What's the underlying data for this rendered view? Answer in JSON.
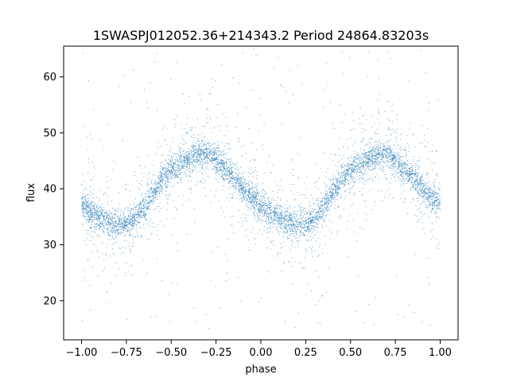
{
  "chart_data": {
    "type": "scatter",
    "title": "1SWASPJ012052.36+214343.2 Period 24864.83203s",
    "xlabel": "phase",
    "ylabel": "flux",
    "xlim": [
      -1.1,
      1.1
    ],
    "ylim": [
      13,
      65.5
    ],
    "xticks": [
      -1.0,
      -0.75,
      -0.5,
      -0.25,
      0.0,
      0.25,
      0.5,
      0.75,
      1.0
    ],
    "xtick_labels": [
      "−1.00",
      "−0.75",
      "−0.50",
      "−0.25",
      "0.00",
      "0.25",
      "0.50",
      "0.75",
      "1.00"
    ],
    "yticks": [
      20,
      30,
      40,
      50,
      60
    ],
    "ytick_labels": [
      "20",
      "30",
      "40",
      "50",
      "60"
    ],
    "grid": false,
    "series": [
      {
        "marker_color": "#1f77b4",
        "x_range": [
          -1.0,
          1.0
        ],
        "points": [
          [
            -1.0,
            37.5
          ],
          [
            -0.95,
            35.8
          ],
          [
            -0.9,
            34.7
          ],
          [
            -0.85,
            34.0
          ],
          [
            -0.8,
            33.6
          ],
          [
            -0.75,
            33.8
          ],
          [
            -0.7,
            34.8
          ],
          [
            -0.65,
            36.8
          ],
          [
            -0.6,
            39.3
          ],
          [
            -0.55,
            41.6
          ],
          [
            -0.5,
            43.2
          ],
          [
            -0.45,
            44.2
          ],
          [
            -0.4,
            45.3
          ],
          [
            -0.35,
            46.0
          ],
          [
            -0.3,
            46.1
          ],
          [
            -0.25,
            45.2
          ],
          [
            -0.2,
            43.6
          ],
          [
            -0.15,
            41.7
          ],
          [
            -0.1,
            40.0
          ],
          [
            -0.05,
            38.4
          ],
          [
            0.0,
            37.0
          ],
          [
            0.05,
            35.8
          ],
          [
            0.1,
            34.7
          ],
          [
            0.15,
            34.0
          ],
          [
            0.2,
            33.6
          ],
          [
            0.25,
            33.7
          ],
          [
            0.3,
            34.7
          ],
          [
            0.35,
            36.7
          ],
          [
            0.4,
            39.3
          ],
          [
            0.45,
            41.6
          ],
          [
            0.5,
            43.2
          ],
          [
            0.55,
            44.2
          ],
          [
            0.6,
            45.3
          ],
          [
            0.65,
            46.0
          ],
          [
            0.7,
            46.2
          ],
          [
            0.75,
            45.2
          ],
          [
            0.8,
            43.6
          ],
          [
            0.85,
            41.7
          ],
          [
            0.9,
            40.0
          ],
          [
            0.95,
            38.5
          ],
          [
            1.0,
            37.3
          ]
        ],
        "core_scatter": 1.2,
        "outlier_range": [
          15,
          65
        ]
      }
    ]
  }
}
